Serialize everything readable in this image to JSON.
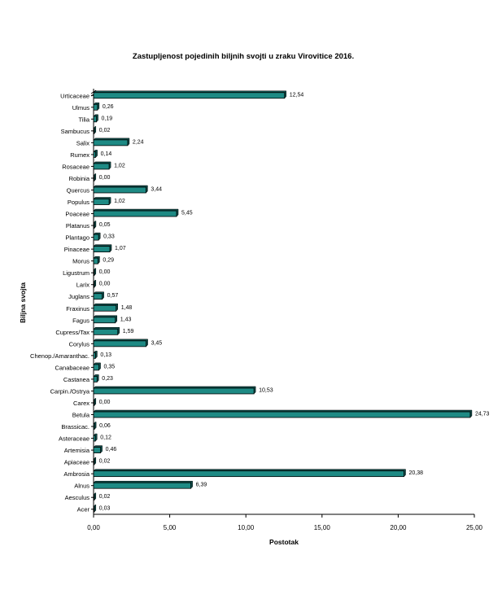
{
  "chart_data": {
    "type": "bar",
    "orientation": "horizontal",
    "title": "Zastupljenost pojedinih biljnih svojti u zraku Virovitice 2016.",
    "xlabel": "Postotak",
    "ylabel": "Biljna svojta",
    "xlim": [
      0,
      25
    ],
    "xticks": [
      "0,00",
      "5,00",
      "10,00",
      "15,00",
      "20,00",
      "25,00"
    ],
    "bar_color": "#1e8a84",
    "categories": [
      "Urticaceae",
      "Ulmus",
      "Tilia",
      "Sambucus",
      "Salix",
      "Rumex",
      "Rosaceae",
      "Robinia",
      "Quercus",
      "Populus",
      "Poaceae",
      "Platanus",
      "Plantago",
      "Pinaceae",
      "Morus",
      "Ligustrum",
      "Larix",
      "Juglans",
      "Fraxinus",
      "Fagus",
      "Cupress/Tax",
      "Corylus",
      "Chenop./Amaranthac.",
      "Canabaceae",
      "Castanea",
      "Carpin./Ostrya",
      "Carex",
      "Betula",
      "Brassicac.",
      "Asteraceae",
      "Artemisia",
      "Apiaceae",
      "Ambrosia",
      "Alnus",
      "Aesculus",
      "Acer"
    ],
    "values": [
      12.54,
      0.26,
      0.19,
      0.02,
      2.24,
      0.14,
      1.02,
      0.0,
      3.44,
      1.02,
      5.45,
      0.05,
      0.33,
      1.07,
      0.29,
      0.0,
      0.0,
      0.57,
      1.48,
      1.43,
      1.59,
      3.45,
      0.13,
      0.35,
      0.23,
      10.53,
      0.0,
      24.73,
      0.06,
      0.12,
      0.46,
      0.02,
      20.38,
      6.39,
      0.02,
      0.03
    ],
    "value_labels": [
      "12,54",
      "0,26",
      "0,19",
      "0,02",
      "2,24",
      "0,14",
      "1,02",
      "0,00",
      "3,44",
      "1,02",
      "5,45",
      "0,05",
      "0,33",
      "1,07",
      "0,29",
      "0,00",
      "0,00",
      "0,57",
      "1,48",
      "1,43",
      "1,59",
      "3,45",
      "0,13",
      "0,35",
      "0,23",
      "10,53",
      "0,00",
      "24,73",
      "0,06",
      "0,12",
      "0,46",
      "0,02",
      "20,38",
      "6,39",
      "0,02",
      "0,03"
    ]
  }
}
